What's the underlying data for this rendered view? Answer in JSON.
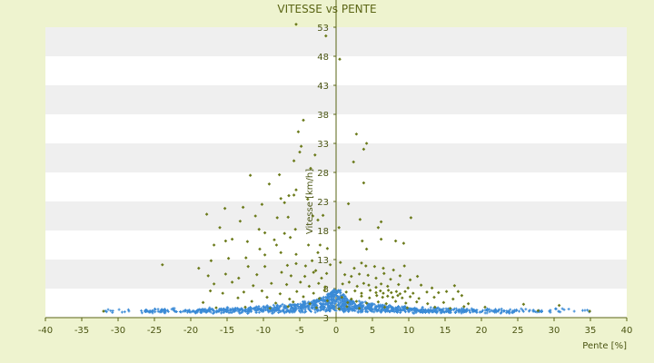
{
  "chart_data": {
    "type": "scatter",
    "title": "VITESSE vs PENTE",
    "xlabel": "Pente [%]",
    "ylabel": "Vitesse [km/h]",
    "xlim": [
      -40,
      40
    ],
    "ylim": [
      3,
      53
    ],
    "x_ticks": [
      -40,
      -35,
      -30,
      -25,
      -20,
      -15,
      -10,
      -5,
      0,
      5,
      10,
      15,
      20,
      25,
      30,
      35,
      40
    ],
    "y_ticks": [
      3,
      8,
      13,
      18,
      23,
      28,
      33,
      38,
      43,
      48,
      53
    ],
    "grid": "horizontal bands",
    "legend": "none",
    "colors": {
      "background": "#eef3cf",
      "band_light": "#ffffff",
      "band_dark": "#efefef",
      "axis": "#5a6414",
      "series_high": "#6b7a1a",
      "series_low": "#3a8ad6"
    },
    "series": [
      {
        "color": "#6b7a1a",
        "marker": "diamond",
        "points": [
          [
            -5.5,
            53.5
          ],
          [
            -1.4,
            51.5
          ],
          [
            0.5,
            47.5
          ],
          [
            -4.5,
            37
          ],
          [
            -5.2,
            35
          ],
          [
            2.8,
            34.6
          ],
          [
            -4.8,
            32.5
          ],
          [
            4.2,
            33
          ],
          [
            3.8,
            32
          ],
          [
            -5,
            31.5
          ],
          [
            -2.9,
            31
          ],
          [
            -5.8,
            30
          ],
          [
            -3.5,
            28.7
          ],
          [
            2.4,
            29.8
          ],
          [
            -7.8,
            27.6
          ],
          [
            -11.8,
            27.5
          ],
          [
            -9.2,
            26
          ],
          [
            3.8,
            26.2
          ],
          [
            -5.5,
            25
          ],
          [
            -6.5,
            24
          ],
          [
            -7.6,
            23.5
          ],
          [
            -5.8,
            24.1
          ],
          [
            -3.9,
            23.4
          ],
          [
            -7.1,
            22.8
          ],
          [
            -10.2,
            22.5
          ],
          [
            1.7,
            22.6
          ],
          [
            -12.8,
            22
          ],
          [
            -15.3,
            21.8
          ],
          [
            -17.8,
            20.8
          ],
          [
            -1.8,
            20.6
          ],
          [
            -3.2,
            20.5
          ],
          [
            -6.6,
            20.3
          ],
          [
            -8.1,
            20.2
          ],
          [
            -11.1,
            20.5
          ],
          [
            -2.5,
            19.8
          ],
          [
            3.3,
            19.9
          ],
          [
            -13.2,
            19.6
          ],
          [
            -16,
            18.5
          ],
          [
            0.4,
            18.5
          ],
          [
            -10.6,
            18.2
          ],
          [
            -5.6,
            18.2
          ],
          [
            -7.1,
            17.5
          ],
          [
            -9.8,
            17.6
          ],
          [
            5.8,
            18.5
          ],
          [
            6.2,
            19.5
          ],
          [
            10.3,
            20.2
          ],
          [
            -6.3,
            16.8
          ],
          [
            -8.5,
            16.4
          ],
          [
            -15.2,
            16.2
          ],
          [
            -14.3,
            16.5
          ],
          [
            -16.8,
            15.5
          ],
          [
            -12.2,
            16.1
          ],
          [
            3.6,
            16.2
          ],
          [
            6.2,
            16.5
          ],
          [
            8.2,
            16.2
          ],
          [
            9.3,
            15.8
          ],
          [
            -8.2,
            15.5
          ],
          [
            -2.2,
            15.5
          ],
          [
            -3.8,
            15.5
          ],
          [
            -10.5,
            14.8
          ],
          [
            -7.6,
            14.2
          ],
          [
            -5.5,
            13.9
          ],
          [
            -2.5,
            14.2
          ],
          [
            -1.2,
            14.9
          ],
          [
            4.2,
            14.8
          ],
          [
            -9.8,
            13.8
          ],
          [
            -12.4,
            13.3
          ],
          [
            -14.8,
            13.2
          ],
          [
            -17.2,
            12.8
          ],
          [
            -23.9,
            12.1
          ],
          [
            -18.9,
            11.5
          ],
          [
            -12.1,
            11.8
          ],
          [
            -9.8,
            11.8
          ],
          [
            -6.7,
            12
          ],
          [
            -5.5,
            12.3
          ],
          [
            -4.2,
            11.9
          ],
          [
            -3.3,
            12.8
          ],
          [
            -2.8,
            11.1
          ],
          [
            -0.8,
            12.1
          ],
          [
            0.6,
            12.5
          ],
          [
            2.5,
            11.5
          ],
          [
            3.5,
            12.4
          ],
          [
            4.1,
            11.9
          ],
          [
            5.3,
            11.8
          ],
          [
            6.5,
            11.5
          ],
          [
            7.9,
            11.2
          ],
          [
            9.4,
            11.9
          ],
          [
            -17.6,
            10.2
          ],
          [
            -15.2,
            10.5
          ],
          [
            -13.4,
            9.8
          ],
          [
            -10.9,
            10.4
          ],
          [
            -7.5,
            10.8
          ],
          [
            -6.2,
            10.2
          ],
          [
            -4.3,
            10.1
          ],
          [
            -3.1,
            10.8
          ],
          [
            -2,
            9.8
          ],
          [
            -1.3,
            10.6
          ],
          [
            1.2,
            10.4
          ],
          [
            2.1,
            10.1
          ],
          [
            3.2,
            10.5
          ],
          [
            4.4,
            10.3
          ],
          [
            5.5,
            9.8
          ],
          [
            6.6,
            10.6
          ],
          [
            7.5,
            9.6
          ],
          [
            8.8,
            10.2
          ],
          [
            10.2,
            9.5
          ],
          [
            11.2,
            10.1
          ],
          [
            -16.8,
            8.8
          ],
          [
            -14.3,
            9.1
          ],
          [
            -11.4,
            8.5
          ],
          [
            -8.9,
            8.9
          ],
          [
            -6.8,
            8.7
          ],
          [
            -4.9,
            9.1
          ],
          [
            -3.7,
            8.4
          ],
          [
            -2.4,
            8.9
          ],
          [
            -1.5,
            8.3
          ],
          [
            0.9,
            8.8
          ],
          [
            1.8,
            9.1
          ],
          [
            2.9,
            8.4
          ],
          [
            3.8,
            8.9
          ],
          [
            4.5,
            8.6
          ],
          [
            5.5,
            8.2
          ],
          [
            6.2,
            8.8
          ],
          [
            7.1,
            8.4
          ],
          [
            8.6,
            8.7
          ],
          [
            9.9,
            8.1
          ],
          [
            11.7,
            8.6
          ],
          [
            13.2,
            8.1
          ],
          [
            16.3,
            8.5
          ],
          [
            16.8,
            7.5
          ],
          [
            -17.3,
            7.6
          ],
          [
            -15.6,
            7.2
          ],
          [
            -12.7,
            7.4
          ],
          [
            -10.2,
            7.6
          ],
          [
            -7.7,
            7.1
          ],
          [
            -5.4,
            7.5
          ],
          [
            -3.1,
            7.2
          ],
          [
            -1.6,
            7.7
          ],
          [
            1.4,
            7.4
          ],
          [
            2.6,
            7.6
          ],
          [
            3.5,
            7.2
          ],
          [
            4.7,
            7.7
          ],
          [
            5.5,
            7.3
          ],
          [
            6.1,
            7.6
          ],
          [
            6.5,
            7.2
          ],
          [
            7.2,
            7.7
          ],
          [
            7.6,
            7.3
          ],
          [
            8.3,
            7.5
          ],
          [
            8.8,
            7.1
          ],
          [
            9.5,
            7.5
          ],
          [
            10.6,
            7.2
          ],
          [
            12.5,
            7.4
          ],
          [
            14.1,
            7.3
          ],
          [
            15.2,
            7.5
          ],
          [
            -13.5,
            6.4
          ],
          [
            -9.5,
            6.5
          ],
          [
            -6.4,
            6.2
          ],
          [
            -4.5,
            6.6
          ],
          [
            -2.3,
            6.3
          ],
          [
            0.8,
            6.5
          ],
          [
            2.1,
            6.2
          ],
          [
            3.5,
            6.7
          ],
          [
            4.6,
            6.4
          ],
          [
            5.6,
            6.8
          ],
          [
            6.4,
            6.5
          ],
          [
            7.1,
            6.7
          ],
          [
            7.8,
            6.5
          ],
          [
            8.5,
            6.8
          ],
          [
            9.1,
            6.4
          ],
          [
            10.2,
            6.6
          ],
          [
            11.4,
            6.3
          ],
          [
            13.5,
            6.5
          ],
          [
            16.1,
            6.2
          ],
          [
            17.3,
            6.8
          ],
          [
            -18.3,
            5.6
          ],
          [
            -11.6,
            5.8
          ],
          [
            -8.3,
            5.5
          ],
          [
            -5.9,
            5.7
          ],
          [
            -3.6,
            5.4
          ],
          [
            -1.2,
            5.9
          ],
          [
            1.6,
            5.6
          ],
          [
            2.8,
            5.8
          ],
          [
            4.2,
            5.5
          ],
          [
            5.8,
            5.7
          ],
          [
            6.9,
            5.4
          ],
          [
            8.2,
            5.8
          ],
          [
            9.6,
            5.5
          ],
          [
            11.1,
            5.7
          ],
          [
            12.6,
            5.4
          ],
          [
            14.8,
            5.6
          ],
          [
            18.2,
            5.4
          ],
          [
            17.6,
            4.9
          ],
          [
            20.5,
            4.8
          ],
          [
            25.8,
            5.3
          ],
          [
            30.7,
            5.1
          ],
          [
            -16.5,
            4.7
          ],
          [
            -12.5,
            4.8
          ],
          [
            -9.1,
            4.6
          ],
          [
            -6.6,
            4.9
          ],
          [
            -2.7,
            4.7
          ],
          [
            0.4,
            4.5
          ],
          [
            1.5,
            4.9
          ],
          [
            3.2,
            4.6
          ],
          [
            6.7,
            4.8
          ],
          [
            9.8,
            4.7
          ],
          [
            13.6,
            4.8
          ],
          [
            15.7,
            4.6
          ],
          [
            27.8,
            4.2
          ],
          [
            34.9,
            4.1
          ],
          [
            -32,
            4.1
          ]
        ]
      },
      {
        "color": "#3a8ad6",
        "marker": "plus",
        "distribution": "dense V-shaped band near 4-6 km/h, spread from about -32% to 35% slope",
        "points": [
          [
            -32,
            4.1
          ],
          [
            -26.8,
            4.2
          ],
          [
            -25.6,
            4
          ],
          [
            -24.1,
            4.1
          ],
          [
            -23.4,
            4.2
          ],
          [
            -20.8,
            4.1
          ],
          [
            -19.3,
            4
          ],
          [
            -18.5,
            4.2
          ],
          [
            -17.6,
            4.3
          ],
          [
            -16.4,
            4.2
          ],
          [
            -15.1,
            4.4
          ],
          [
            -14.2,
            4.3
          ],
          [
            -13,
            4.4
          ],
          [
            -11.8,
            4.5
          ],
          [
            -10.6,
            4.6
          ],
          [
            -9.4,
            4.7
          ],
          [
            -8.2,
            4.8
          ],
          [
            -7,
            4.9
          ],
          [
            -5.8,
            5.1
          ],
          [
            -4.6,
            5.3
          ],
          [
            -3.4,
            5.6
          ],
          [
            -2.2,
            6
          ],
          [
            -1.2,
            6.6
          ],
          [
            -0.5,
            7.4
          ],
          [
            0.5,
            7.5
          ],
          [
            1.2,
            6.6
          ],
          [
            2.2,
            5.9
          ],
          [
            3.4,
            5.5
          ],
          [
            4.6,
            5.2
          ],
          [
            5.8,
            5
          ],
          [
            7,
            4.8
          ],
          [
            8.2,
            4.7
          ],
          [
            9.4,
            4.6
          ],
          [
            10.6,
            4.5
          ],
          [
            11.8,
            4.4
          ],
          [
            13,
            4.3
          ],
          [
            14.2,
            4.3
          ],
          [
            15.4,
            4.2
          ],
          [
            16.6,
            4.2
          ],
          [
            17.8,
            4.1
          ],
          [
            19,
            4.1
          ],
          [
            20.8,
            4.2
          ],
          [
            22.3,
            4.1
          ],
          [
            23.7,
            4
          ],
          [
            25.2,
            4.1
          ],
          [
            27.9,
            4
          ],
          [
            30.6,
            4.1
          ],
          [
            34.9,
            4.1
          ]
        ]
      }
    ]
  }
}
